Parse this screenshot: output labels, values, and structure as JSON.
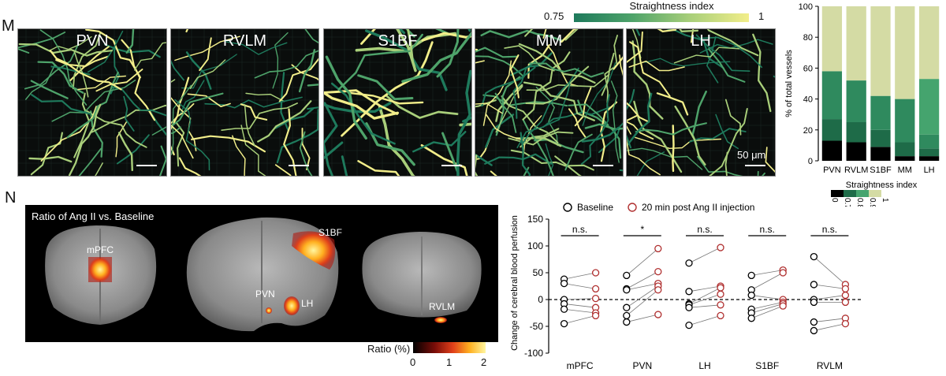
{
  "panel_m": {
    "letter": "M",
    "images": [
      {
        "label": "PVN",
        "scale": ""
      },
      {
        "label": "RVLM",
        "scale": ""
      },
      {
        "label": "S1BF",
        "scale": ""
      },
      {
        "label": "MM",
        "scale": ""
      },
      {
        "label": "LH",
        "scale": "50 μm"
      }
    ],
    "colorbar": {
      "title": "Straightness index",
      "min": "0.75",
      "max": "1",
      "colors": [
        "#1e7a5c",
        "#4ea36a",
        "#a9cf7a",
        "#f2ee8a"
      ]
    }
  },
  "panel_n": {
    "letter": "N",
    "mri_title": "Ratio of Ang II vs. Baseline",
    "region_labels": [
      "mPFC",
      "S1BF",
      "PVN",
      "LH",
      "RVLM"
    ],
    "ratio_colorbar": {
      "title": "Ratio (%)",
      "ticks": [
        "0",
        "1",
        "2"
      ]
    }
  },
  "chart_data": [
    {
      "type": "bar",
      "stacked": true,
      "categories": [
        "PVN",
        "RVLM",
        "S1BF",
        "MM",
        "LH"
      ],
      "ylabel": "% of total vessels",
      "ylim": [
        0,
        100
      ],
      "yticks": [
        "0",
        "20",
        "40",
        "60",
        "80",
        "100"
      ],
      "legend_title": "Straightness index",
      "legend_labels": [
        "0",
        "0.7",
        "0.8",
        "0.9",
        "1"
      ],
      "series": [
        {
          "values": [
            13,
            12,
            9,
            3,
            3
          ],
          "color": "#000000"
        },
        {
          "values": [
            14,
            13,
            11,
            9,
            5
          ],
          "color": "#1e6b48"
        },
        {
          "values": [
            31,
            27,
            22,
            28,
            9
          ],
          "color": "#2f8a5e"
        },
        {
          "values": [
            0,
            0,
            0,
            0,
            36
          ],
          "color": "#45a46e"
        },
        {
          "values": [
            42,
            48,
            58,
            60,
            47
          ],
          "color": "#d4dba4"
        }
      ]
    },
    {
      "type": "scatter",
      "paired": true,
      "categories": [
        "mPFC",
        "PVN",
        "LH",
        "S1BF",
        "RVLM"
      ],
      "ylabel": "Change of cerebral blood perfusion",
      "ylim": [
        -100,
        150
      ],
      "yticks": [
        "-100",
        "-50",
        "0",
        "50",
        "100",
        "150"
      ],
      "legend": [
        "Baseline",
        "20 min post Ang II injection"
      ],
      "significance": [
        "n.s.",
        "*",
        "n.s.",
        "n.s.",
        "n.s."
      ],
      "groups": [
        {
          "baseline": [
            38,
            30,
            0,
            -8,
            -18,
            -45
          ],
          "post": [
            50,
            20,
            2,
            -15,
            -25,
            -30
          ]
        },
        {
          "baseline": [
            45,
            20,
            18,
            -15,
            -30,
            -42
          ],
          "post": [
            95,
            52,
            30,
            25,
            18,
            -28
          ]
        },
        {
          "baseline": [
            68,
            15,
            -8,
            -10,
            -15,
            -48
          ],
          "post": [
            97,
            25,
            22,
            10,
            -10,
            -30
          ]
        },
        {
          "baseline": [
            45,
            18,
            8,
            -18,
            -25,
            -35
          ],
          "post": [
            55,
            50,
            0,
            -5,
            -8,
            -12
          ]
        },
        {
          "baseline": [
            80,
            28,
            0,
            -5,
            -42,
            -58
          ],
          "post": [
            28,
            20,
            8,
            -5,
            -35,
            -45
          ]
        }
      ]
    }
  ]
}
